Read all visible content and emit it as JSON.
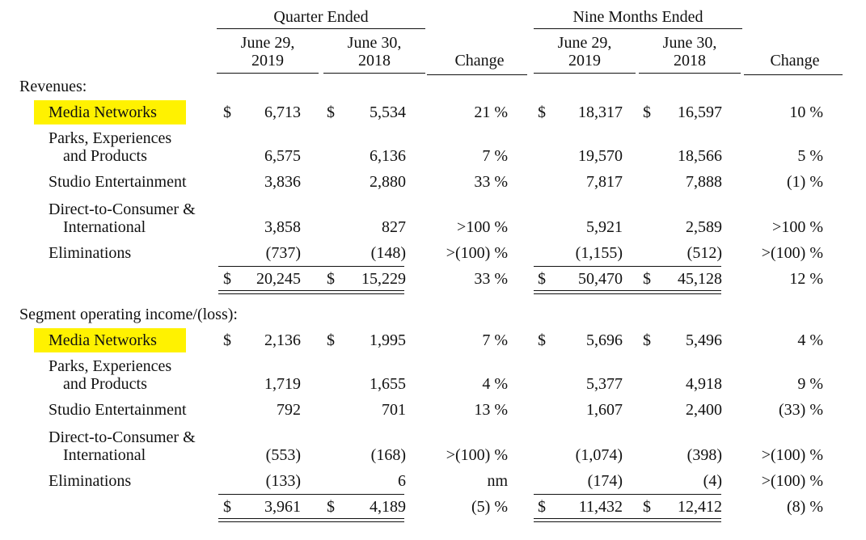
{
  "header": {
    "group_quarter": "Quarter Ended",
    "group_nine": "Nine Months Ended",
    "q_col1": [
      "June 29,",
      "2019"
    ],
    "q_col2": [
      "June 30,",
      "2018"
    ],
    "q_change": "Change",
    "n_col1": [
      "June 29,",
      "2019"
    ],
    "n_col2": [
      "June 30,",
      "2018"
    ],
    "n_change": "Change"
  },
  "sections": [
    {
      "title": "Revenues:",
      "rows": [
        {
          "label": [
            "Media Networks"
          ],
          "highlight": true,
          "q1_dollar": true,
          "q1": "6,713",
          "q2_dollar": true,
          "q2": "5,534",
          "q_change": "21 %",
          "n1_dollar": true,
          "n1": "18,317",
          "n2_dollar": true,
          "n2": "16,597",
          "n_change": "10 %"
        },
        {
          "label": [
            "Parks, Experiences",
            "and Products"
          ],
          "q1": "6,575",
          "q2": "6,136",
          "q_change": "7 %",
          "n1": "19,570",
          "n2": "18,566",
          "n_change": "5 %"
        },
        {
          "label": [
            "Studio Entertainment"
          ],
          "q1": "3,836",
          "q2": "2,880",
          "q_change": "33 %",
          "n1": "7,817",
          "n2": "7,888",
          "n_change": "(1) %"
        },
        {
          "label": [
            "Direct-to-Consumer &",
            "International"
          ],
          "q1": "3,858",
          "q2": "827",
          "q_change": ">100 %",
          "n1": "5,921",
          "n2": "2,589",
          "n_change": ">100 %"
        },
        {
          "label": [
            "Eliminations"
          ],
          "q1": "(737)",
          "q2": "(148)",
          "q_change": ">(100) %",
          "n1": "(1,155)",
          "n2": "(512)",
          "n_change": ">(100) %"
        }
      ],
      "total": {
        "q1_dollar": true,
        "q1": "20,245",
        "q2_dollar": true,
        "q2": "15,229",
        "q_change": "33 %",
        "n1_dollar": true,
        "n1": "50,470",
        "n2_dollar": true,
        "n2": "45,128",
        "n_change": "12 %"
      }
    },
    {
      "title": "Segment operating income/(loss):",
      "rows": [
        {
          "label": [
            "Media Networks"
          ],
          "highlight": true,
          "q1_dollar": true,
          "q1": "2,136",
          "q2_dollar": true,
          "q2": "1,995",
          "q_change": "7 %",
          "n1_dollar": true,
          "n1": "5,696",
          "n2_dollar": true,
          "n2": "5,496",
          "n_change": "4 %"
        },
        {
          "label": [
            "Parks, Experiences",
            "and Products"
          ],
          "q1": "1,719",
          "q2": "1,655",
          "q_change": "4 %",
          "n1": "5,377",
          "n2": "4,918",
          "n_change": "9 %"
        },
        {
          "label": [
            "Studio Entertainment"
          ],
          "q1": "792",
          "q2": "701",
          "q_change": "13 %",
          "n1": "1,607",
          "n2": "2,400",
          "n_change": "(33) %"
        },
        {
          "label": [
            "Direct-to-Consumer &",
            "International"
          ],
          "q1": "(553)",
          "q2": "(168)",
          "q_change": ">(100) %",
          "n1": "(1,074)",
          "n2": "(398)",
          "n_change": ">(100) %"
        },
        {
          "label": [
            "Eliminations"
          ],
          "q1": "(133)",
          "q2": "6",
          "q_change": "nm",
          "n1": "(174)",
          "n2": "(4)",
          "n_change": ">(100) %"
        }
      ],
      "total": {
        "q1_dollar": true,
        "q1": "3,961",
        "q2_dollar": true,
        "q2": "4,189",
        "q_change": "(5) %",
        "n1_dollar": true,
        "n1": "11,432",
        "n2_dollar": true,
        "n2": "12,412",
        "n_change": "(8) %"
      }
    }
  ],
  "currency_symbol": "$",
  "highlight_color": "#fff200"
}
